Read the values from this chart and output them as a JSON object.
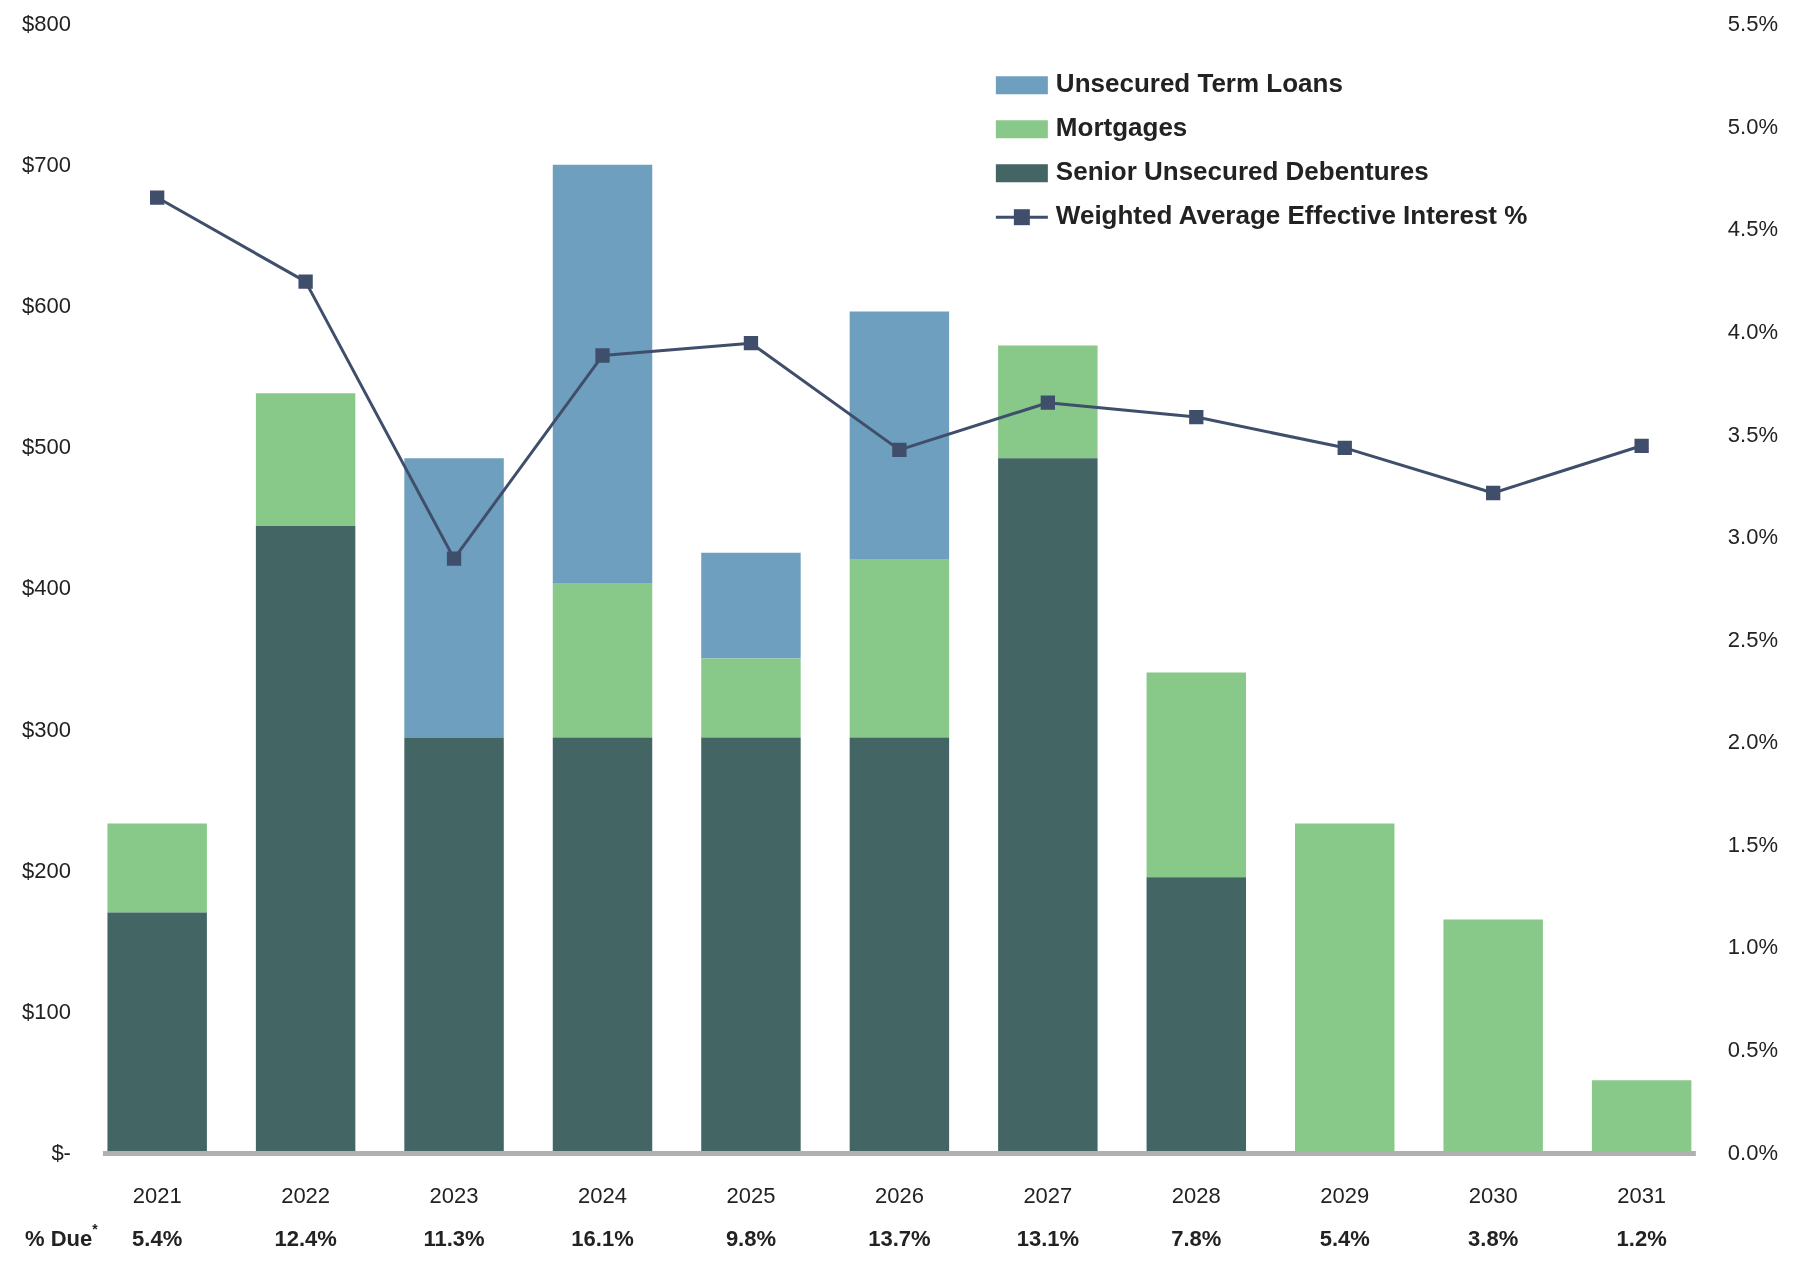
{
  "chart_data": {
    "type": "bar",
    "stacked": true,
    "categories": [
      "2021",
      "2022",
      "2023",
      "2024",
      "2025",
      "2026",
      "2027",
      "2028",
      "2029",
      "2030",
      "2031"
    ],
    "series": [
      {
        "name": "Senior Unsecured Debentures",
        "color": "#436563",
        "values": [
          171,
          445,
          295,
          295,
          295,
          295,
          493,
          196,
          null,
          null,
          null
        ]
      },
      {
        "name": "Mortgages",
        "color": "#88c989",
        "values": [
          63,
          94,
          null,
          109,
          56,
          126,
          80,
          145,
          234,
          166,
          52
        ]
      },
      {
        "name": "Unsecured Term Loans",
        "color": "#6f9fbe",
        "values": [
          null,
          null,
          198,
          297,
          75,
          176,
          null,
          null,
          null,
          null,
          null
        ]
      },
      {
        "name": "Weighted Average Effective Interest %",
        "type": "line",
        "axis": "y2",
        "color": "#3f4f6b",
        "marker": "square",
        "line_style": "solid",
        "values": [
          4.66,
          4.25,
          2.9,
          3.89,
          3.95,
          3.43,
          3.66,
          3.59,
          3.44,
          3.22,
          3.45
        ]
      }
    ],
    "ylim": [
      0,
      800
    ],
    "yticks": [
      {
        "value": 0,
        "label": "$-"
      },
      {
        "value": 100,
        "label": "$100"
      },
      {
        "value": 200,
        "label": "$200"
      },
      {
        "value": 300,
        "label": "$300"
      },
      {
        "value": 400,
        "label": "$400"
      },
      {
        "value": 500,
        "label": "$500"
      },
      {
        "value": 600,
        "label": "$600"
      },
      {
        "value": 700,
        "label": "$700"
      },
      {
        "value": 800,
        "label": "$800"
      }
    ],
    "y2lim": [
      0,
      5.5
    ],
    "y2ticks": [
      {
        "value": 0,
        "label": "0.0%"
      },
      {
        "value": 0.5,
        "label": "0.5%"
      },
      {
        "value": 1,
        "label": "1.0%"
      },
      {
        "value": 1.5,
        "label": "1.5%"
      },
      {
        "value": 2,
        "label": "2.0%"
      },
      {
        "value": 2.5,
        "label": "2.5%"
      },
      {
        "value": 3,
        "label": "3.0%"
      },
      {
        "value": 3.5,
        "label": "3.5%"
      },
      {
        "value": 4,
        "label": "4.0%"
      },
      {
        "value": 4.5,
        "label": "4.5%"
      },
      {
        "value": 5,
        "label": "5.0%"
      },
      {
        "value": 5.5,
        "label": "5.5%"
      }
    ],
    "grid": false,
    "legend": "top right",
    "annotations": [
      "% Due$^{*}$",
      "5.4%",
      "12.4%",
      "11.3%",
      "16.1%",
      "9.8%",
      "13.7%",
      "13.1%",
      "7.8%",
      "5.4%",
      "3.8%",
      "1.2%"
    ]
  }
}
